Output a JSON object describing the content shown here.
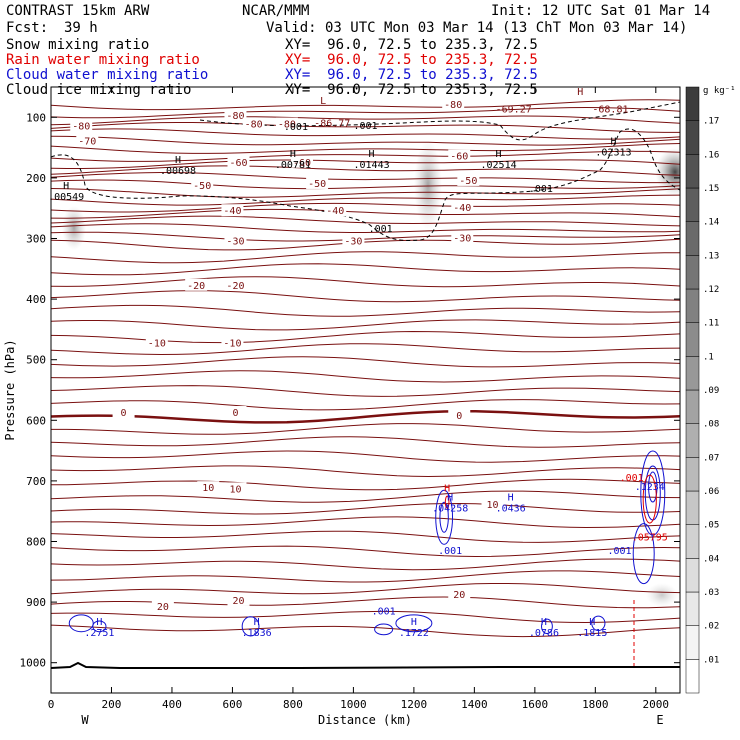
{
  "header": {
    "model": "CONTRAST 15km ARW",
    "institution": "NCAR/MMM",
    "init": "Init: 12 UTC Sat 01 Mar 14",
    "fcst_label": "Fcst:",
    "fcst_value": "39 h",
    "valid": "Valid: 03 UTC Mon 03 Mar 14 (13 ChT Mon 03 Mar 14)",
    "fields": [
      {
        "name": "Snow mixing ratio",
        "xy": "XY=  96.0, 72.5 to 235.3, 72.5",
        "color": "#000000"
      },
      {
        "name": "Rain water mixing ratio",
        "xy": "XY=  96.0, 72.5 to 235.3, 72.5",
        "color": "#e00000"
      },
      {
        "name": "Cloud water mixing ratio",
        "xy": "XY=  96.0, 72.5 to 235.3, 72.5",
        "color": "#1010d0"
      },
      {
        "name": "Cloud ice mixing ratio",
        "xy": "XY=  96.0, 72.5 to 235.3, 72.5",
        "color": "#000000"
      }
    ]
  },
  "chart_data": {
    "type": "contour-cross-section",
    "xlabel": "Distance (km)",
    "ylabel": "Pressure (hPa)",
    "xlim": [
      0,
      2080
    ],
    "ylim": [
      1050,
      50
    ],
    "x_ticks": [
      0,
      200,
      400,
      600,
      800,
      1000,
      1200,
      1400,
      1600,
      1800,
      2000
    ],
    "y_ticks": [
      100,
      200,
      300,
      400,
      500,
      600,
      700,
      800,
      900,
      1000
    ],
    "endpoint_labels": [
      "W",
      "E"
    ],
    "colorbar": {
      "unit": "g kg⁻¹",
      "levels": [
        0.01,
        0.02,
        0.03,
        0.04,
        0.05,
        0.06,
        0.07,
        0.08,
        0.09,
        0.1,
        0.11,
        0.12,
        0.13,
        0.14,
        0.15,
        0.16,
        0.17
      ],
      "labels": [
        ".01",
        ".02",
        ".03",
        ".04",
        ".05",
        ".06",
        ".07",
        ".08",
        ".09",
        ".1",
        ".11",
        ".12",
        ".13",
        ".14",
        ".15",
        ".16",
        ".17"
      ]
    },
    "temperature_contours": {
      "color": "#7a1010",
      "levels": [
        -80,
        -70,
        -60,
        -50,
        -40,
        -30,
        -20,
        -10,
        0,
        10,
        20
      ],
      "labels": [
        {
          "text": "-80",
          "x": 610,
          "p": 98
        },
        {
          "text": "-80",
          "x": 780,
          "p": 112
        },
        {
          "text": "-80",
          "x": 1330,
          "p": 80
        },
        {
          "text": "-80",
          "x": 670,
          "p": 112
        },
        {
          "text": "-80",
          "x": 100,
          "p": 115
        },
        {
          "text": "-70",
          "x": 120,
          "p": 140
        },
        {
          "text": "-60",
          "x": 620,
          "p": 175
        },
        {
          "text": "-60",
          "x": 830,
          "p": 175
        },
        {
          "text": "-60",
          "x": 1350,
          "p": 165
        },
        {
          "text": "-50",
          "x": 500,
          "p": 213
        },
        {
          "text": "-50",
          "x": 880,
          "p": 210
        },
        {
          "text": "-50",
          "x": 1380,
          "p": 205
        },
        {
          "text": "-40",
          "x": 600,
          "p": 255
        },
        {
          "text": "-40",
          "x": 940,
          "p": 255
        },
        {
          "text": "-40",
          "x": 1360,
          "p": 250
        },
        {
          "text": "-30",
          "x": 610,
          "p": 305
        },
        {
          "text": "-30",
          "x": 1000,
          "p": 305
        },
        {
          "text": "-30",
          "x": 1360,
          "p": 300
        },
        {
          "text": "-20",
          "x": 480,
          "p": 378
        },
        {
          "text": "-20",
          "x": 610,
          "p": 378
        },
        {
          "text": "-10",
          "x": 350,
          "p": 473
        },
        {
          "text": "-10",
          "x": 600,
          "p": 473
        },
        {
          "text": "0",
          "x": 240,
          "p": 588
        },
        {
          "text": "0",
          "x": 610,
          "p": 588
        },
        {
          "text": "0",
          "x": 1350,
          "p": 593
        },
        {
          "text": "10",
          "x": 520,
          "p": 712
        },
        {
          "text": "10",
          "x": 610,
          "p": 714
        },
        {
          "text": "10",
          "x": 1460,
          "p": 740
        },
        {
          "text": "20",
          "x": 370,
          "p": 908
        },
        {
          "text": "20",
          "x": 620,
          "p": 898
        },
        {
          "text": "20",
          "x": 1350,
          "p": 888
        }
      ]
    },
    "tropopause_line_label": ".001",
    "extrema": [
      {
        "mark": "L",
        "value": "",
        "x": 900,
        "p": 88,
        "color": "#7a1010"
      },
      {
        "mark": "",
        "value": "-86.77",
        "x": 930,
        "p": 107,
        "color": "#7a1010"
      },
      {
        "mark": "",
        "value": "-69.27",
        "x": 1530,
        "p": 84,
        "color": "#7a1010"
      },
      {
        "mark": "H",
        "value": "",
        "x": 1750,
        "p": 73,
        "color": "#7a1010"
      },
      {
        "mark": "",
        "value": "-68.81",
        "x": 1850,
        "p": 84,
        "color": "#7a1010"
      },
      {
        "mark": "",
        "value": ".001",
        "x": 1040,
        "p": 111,
        "color": "#000000"
      },
      {
        "mark": "",
        "value": ".001",
        "x": 810,
        "p": 113,
        "color": "#000000"
      },
      {
        "mark": "H",
        "value": ".00698",
        "x": 420,
        "p": 185,
        "color": "#000000"
      },
      {
        "mark": "H",
        "value": ".00781",
        "x": 800,
        "p": 175,
        "color": "#000000"
      },
      {
        "mark": "H",
        "value": ".01443",
        "x": 1060,
        "p": 175,
        "color": "#000000"
      },
      {
        "mark": "H",
        "value": ".02514",
        "x": 1480,
        "p": 175,
        "color": "#000000"
      },
      {
        "mark": "H",
        "value": ".02313",
        "x": 1860,
        "p": 155,
        "color": "#000000"
      },
      {
        "mark": "H",
        "value": ".00549",
        "x": 50,
        "p": 228,
        "color": "#000000"
      },
      {
        "mark": "",
        "value": ".001",
        "x": 1620,
        "p": 215,
        "color": "#000000"
      },
      {
        "mark": "",
        "value": ".001",
        "x": 1090,
        "p": 281,
        "color": "#000000"
      },
      {
        "mark": "H",
        "value": ".04258",
        "x": 1320,
        "p": 742,
        "color": "#1010d0"
      },
      {
        "mark": "H",
        "value": "",
        "x": 1310,
        "p": 727,
        "color": "#e00000"
      },
      {
        "mark": "H",
        "value": ".0436",
        "x": 1520,
        "p": 742,
        "color": "#1010d0"
      },
      {
        "mark": "",
        "value": ".001",
        "x": 1320,
        "p": 812,
        "color": "#1010d0"
      },
      {
        "mark": "",
        "value": ".001",
        "x": 1920,
        "p": 692,
        "color": "#e00000"
      },
      {
        "mark": "",
        "value": ".05795",
        "x": 1980,
        "p": 790,
        "color": "#e00000"
      },
      {
        "mark": "",
        "value": ".1234",
        "x": 1980,
        "p": 707,
        "color": "#1010d0"
      },
      {
        "mark": "",
        "value": ".001",
        "x": 1880,
        "p": 812,
        "color": "#1010d0"
      },
      {
        "mark": "H",
        "value": ".2751",
        "x": 160,
        "p": 948,
        "color": "#1010d0"
      },
      {
        "mark": "H",
        "value": ".1836",
        "x": 680,
        "p": 948,
        "color": "#1010d0"
      },
      {
        "mark": "",
        "value": ".001",
        "x": 1100,
        "p": 912,
        "color": "#1010d0"
      },
      {
        "mark": "H",
        "value": ".1722",
        "x": 1200,
        "p": 948,
        "color": "#1010d0"
      },
      {
        "mark": "H",
        "value": ".0786",
        "x": 1630,
        "p": 948,
        "color": "#1010d0"
      },
      {
        "mark": "H",
        "value": ".1815",
        "x": 1790,
        "p": 948,
        "color": "#1010d0"
      }
    ]
  }
}
